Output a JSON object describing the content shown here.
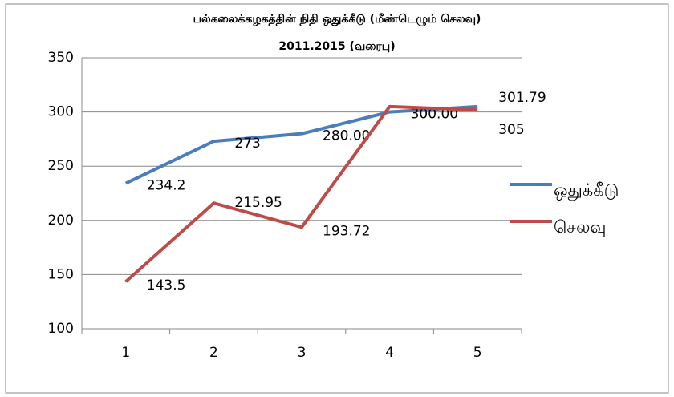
{
  "chart_data": {
    "type": "line",
    "title": "பல்கலைக்கழகத்தின் நிதி ஒதுக்கீடு (மீண்டெழும் செலவு)",
    "subtitle": "2011.2015 (வரைபு)",
    "categories": [
      "1",
      "2",
      "3",
      "4",
      "5"
    ],
    "series": [
      {
        "name": "ஒதுக்கீடு",
        "color": "#4a7ebb",
        "values": [
          234.2,
          273,
          280,
          300,
          305
        ],
        "value_labels": [
          "234.2",
          "273",
          "280.00",
          "300.00",
          "305"
        ]
      },
      {
        "name": "செலவு",
        "color": "#be4b48",
        "values": [
          143.5,
          215.95,
          193.72,
          305,
          301.79
        ],
        "value_labels": [
          "143.5",
          "215.95",
          "193.72",
          null,
          "301.79"
        ]
      }
    ],
    "ylim": [
      100,
      350
    ],
    "yticks": [
      100,
      150,
      200,
      250,
      300,
      350
    ],
    "grid": true,
    "legend": "right"
  }
}
